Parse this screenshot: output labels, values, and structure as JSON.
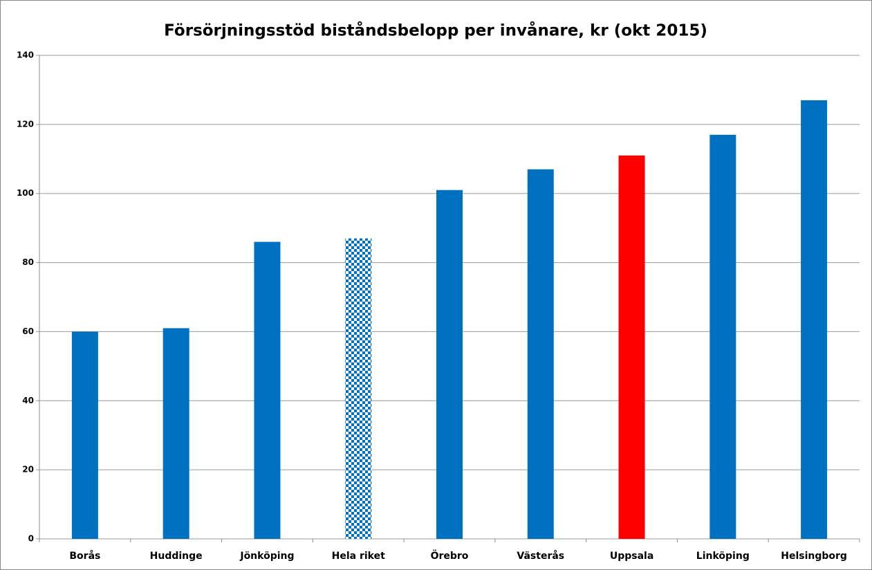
{
  "chart_data": {
    "type": "bar",
    "title": "Försörjningsstöd biståndsbelopp per invånare, kr (okt 2015)",
    "categories": [
      "Borås",
      "Huddinge",
      "Jönköping",
      "Hela riket",
      "Örebro",
      "Västerås",
      "Uppsala",
      "Linköping",
      "Helsingborg"
    ],
    "values": [
      60,
      61,
      86,
      87,
      101,
      107,
      111,
      117,
      127
    ],
    "colors": [
      "#0070c0",
      "#0070c0",
      "#0070c0",
      "#0070c0",
      "#0070c0",
      "#0070c0",
      "#ff0000",
      "#0070c0",
      "#0070c0"
    ],
    "pattern": {
      "index": 3,
      "kind": "checker"
    },
    "ylim": [
      0,
      140
    ],
    "yticks": [
      0,
      20,
      40,
      60,
      80,
      100,
      120,
      140
    ],
    "grid": true
  }
}
